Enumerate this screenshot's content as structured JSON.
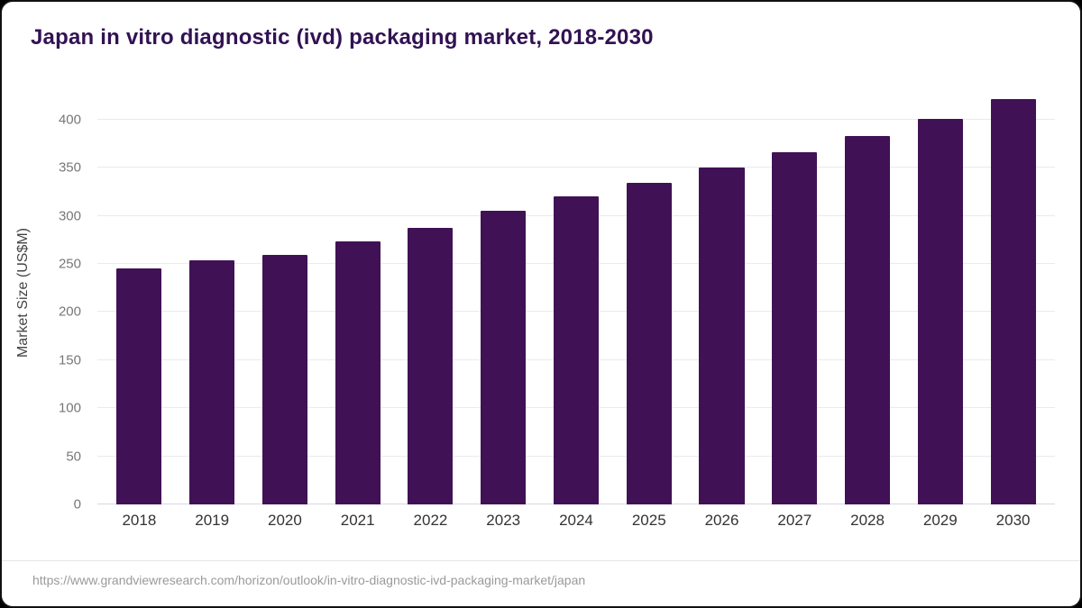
{
  "colors": {
    "bar": "#411155",
    "title": "#321253",
    "grid": "#eaeaef",
    "baseline": "#d9d9e0"
  },
  "source": {
    "url": "https://www.grandviewresearch.com/horizon/outlook/in-vitro-diagnostic-ivd-packaging-market/japan"
  },
  "chart_data": {
    "type": "bar",
    "title": "Japan in vitro diagnostic (ivd) packaging market, 2018-2030",
    "categories": [
      "2018",
      "2019",
      "2020",
      "2021",
      "2022",
      "2023",
      "2024",
      "2025",
      "2026",
      "2027",
      "2028",
      "2029",
      "2030"
    ],
    "values": [
      245,
      254,
      259,
      273,
      287,
      305,
      320,
      334,
      350,
      366,
      383,
      401,
      421
    ],
    "xlabel": "",
    "ylabel": "Market Size (US$M)",
    "ylim": [
      0,
      440
    ],
    "yticks": [
      0,
      50,
      100,
      150,
      200,
      250,
      300,
      350,
      400
    ],
    "grid": true,
    "legend": false
  }
}
